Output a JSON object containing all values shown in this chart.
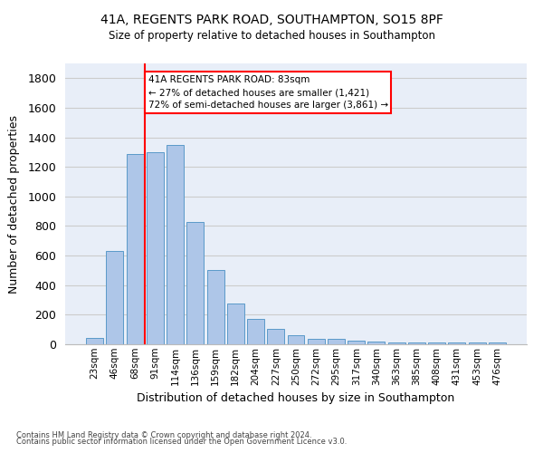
{
  "title_line1": "41A, REGENTS PARK ROAD, SOUTHAMPTON, SO15 8PF",
  "title_line2": "Size of property relative to detached houses in Southampton",
  "xlabel": "Distribution of detached houses by size in Southampton",
  "ylabel": "Number of detached properties",
  "categories": [
    "23sqm",
    "46sqm",
    "68sqm",
    "91sqm",
    "114sqm",
    "136sqm",
    "159sqm",
    "182sqm",
    "204sqm",
    "227sqm",
    "250sqm",
    "272sqm",
    "295sqm",
    "317sqm",
    "340sqm",
    "363sqm",
    "385sqm",
    "408sqm",
    "431sqm",
    "453sqm",
    "476sqm"
  ],
  "values": [
    45,
    630,
    1290,
    1300,
    1350,
    825,
    505,
    275,
    170,
    105,
    60,
    38,
    35,
    25,
    20,
    12,
    10,
    10,
    10,
    10,
    10
  ],
  "bar_color": "#aec6e8",
  "bar_edge_color": "#5a9ac9",
  "grid_color": "#cccccc",
  "background_color": "#e8eef8",
  "vline_x_index": 3,
  "vline_color": "red",
  "annotation_text": "41A REGENTS PARK ROAD: 83sqm\n← 27% of detached houses are smaller (1,421)\n72% of semi-detached houses are larger (3,861) →",
  "annotation_box_color": "red",
  "ylim": [
    0,
    1900
  ],
  "yticks": [
    0,
    200,
    400,
    600,
    800,
    1000,
    1200,
    1400,
    1600,
    1800
  ],
  "footnote1": "Contains HM Land Registry data © Crown copyright and database right 2024.",
  "footnote2": "Contains public sector information licensed under the Open Government Licence v3.0."
}
